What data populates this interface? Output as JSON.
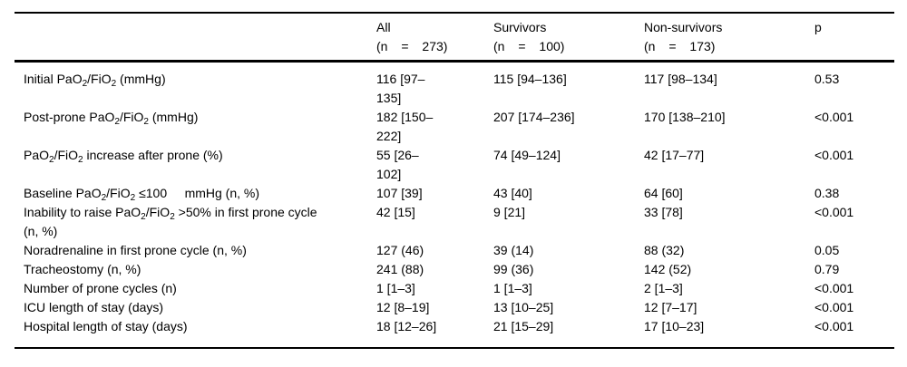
{
  "colors": {
    "background": "#ffffff",
    "text": "#000000",
    "rule": "#000000"
  },
  "table": {
    "header": {
      "label_column": "",
      "columns": [
        {
          "key": "all",
          "title": "All",
          "n": "(n = 273)"
        },
        {
          "key": "survivors",
          "title": "Survivors",
          "n": "(n = 100)"
        },
        {
          "key": "non_survivors",
          "title": "Non-survivors",
          "n": "(n = 173)"
        },
        {
          "key": "p",
          "title": "p",
          "n": ""
        }
      ]
    },
    "rows": [
      {
        "label": "Initial PaO₂/FiO₂ (mmHg)",
        "all": "116 [97–135]",
        "survivors": "115 [94–136]",
        "non_survivors": "117 [98–134]",
        "p": "0.53"
      },
      {
        "label": "Post-prone PaO₂/FiO₂ (mmHg)",
        "all": "182 [150–222]",
        "survivors": "207 [174–236]",
        "non_survivors": "170 [138–210]",
        "p": "<0.001"
      },
      {
        "label": "PaO₂/FiO₂ increase after prone (%)",
        "all": "55 [26–102]",
        "survivors": "74 [49–124]",
        "non_survivors": "42 [17–77]",
        "p": "<0.001"
      },
      {
        "label": "Baseline PaO₂/FiO₂ ≤100     mmHg (n, %)",
        "all": "107 [39]",
        "survivors": "43 [40]",
        "non_survivors": "64 [60]",
        "p": "0.38"
      },
      {
        "label": "Inability to raise PaO₂/FiO₂ >50% in first prone cycle (n, %)",
        "all": "42 [15]",
        "survivors": "9 [21]",
        "non_survivors": "33 [78]",
        "p": "<0.001"
      },
      {
        "label": "Noradrenaline in first prone cycle (n, %)",
        "all": "127 (46)",
        "survivors": "39 (14)",
        "non_survivors": "88 (32)",
        "p": "0.05"
      },
      {
        "label": "Tracheostomy (n, %)",
        "all": "241 (88)",
        "survivors": "99 (36)",
        "non_survivors": "142 (52)",
        "p": "0.79"
      },
      {
        "label": "Number of prone cycles (n)",
        "all": "1 [1–3]",
        "survivors": "1 [1–3]",
        "non_survivors": "2 [1–3]",
        "p": "<0.001"
      },
      {
        "label": "ICU length of stay (days)",
        "all": "12 [8–19]",
        "survivors": "13 [10–25]",
        "non_survivors": "12 [7–17]",
        "p": "<0.001"
      },
      {
        "label": "Hospital length of stay (days)",
        "all": "18 [12–26]",
        "survivors": "21 [15–29]",
        "non_survivors": "17 [10–23]",
        "p": "<0.001"
      }
    ]
  }
}
